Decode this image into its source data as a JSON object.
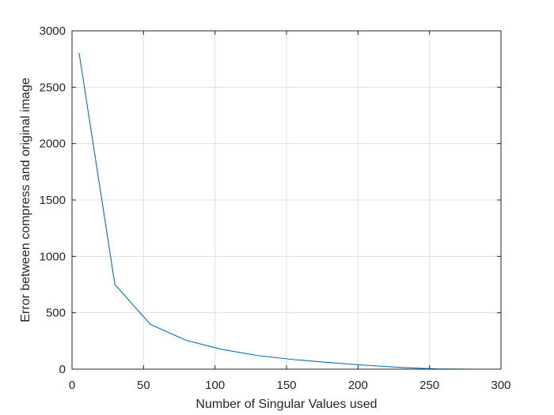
{
  "chart_data": {
    "type": "line",
    "title": "",
    "xlabel": "Number of Singular Values used",
    "ylabel": "Error between compress and original image",
    "xlim": [
      0,
      300
    ],
    "ylim": [
      0,
      3000
    ],
    "xticks": [
      0,
      50,
      100,
      150,
      200,
      250,
      300
    ],
    "yticks": [
      0,
      500,
      1000,
      1500,
      2000,
      2500,
      3000
    ],
    "xtick_labels": [
      "0",
      "50",
      "100",
      "150",
      "200",
      "250",
      "300"
    ],
    "ytick_labels": [
      "0",
      "500",
      "1000",
      "1500",
      "2000",
      "2500",
      "3000"
    ],
    "grid": true,
    "legend": "none",
    "series": [
      {
        "color": "#0072BD",
        "x": [
          5,
          30,
          55,
          80,
          105,
          130,
          155,
          180,
          205,
          230,
          255,
          280
        ],
        "y": [
          2800,
          750,
          395,
          255,
          175,
          120,
          85,
          58,
          35,
          15,
          2,
          0
        ]
      }
    ]
  }
}
